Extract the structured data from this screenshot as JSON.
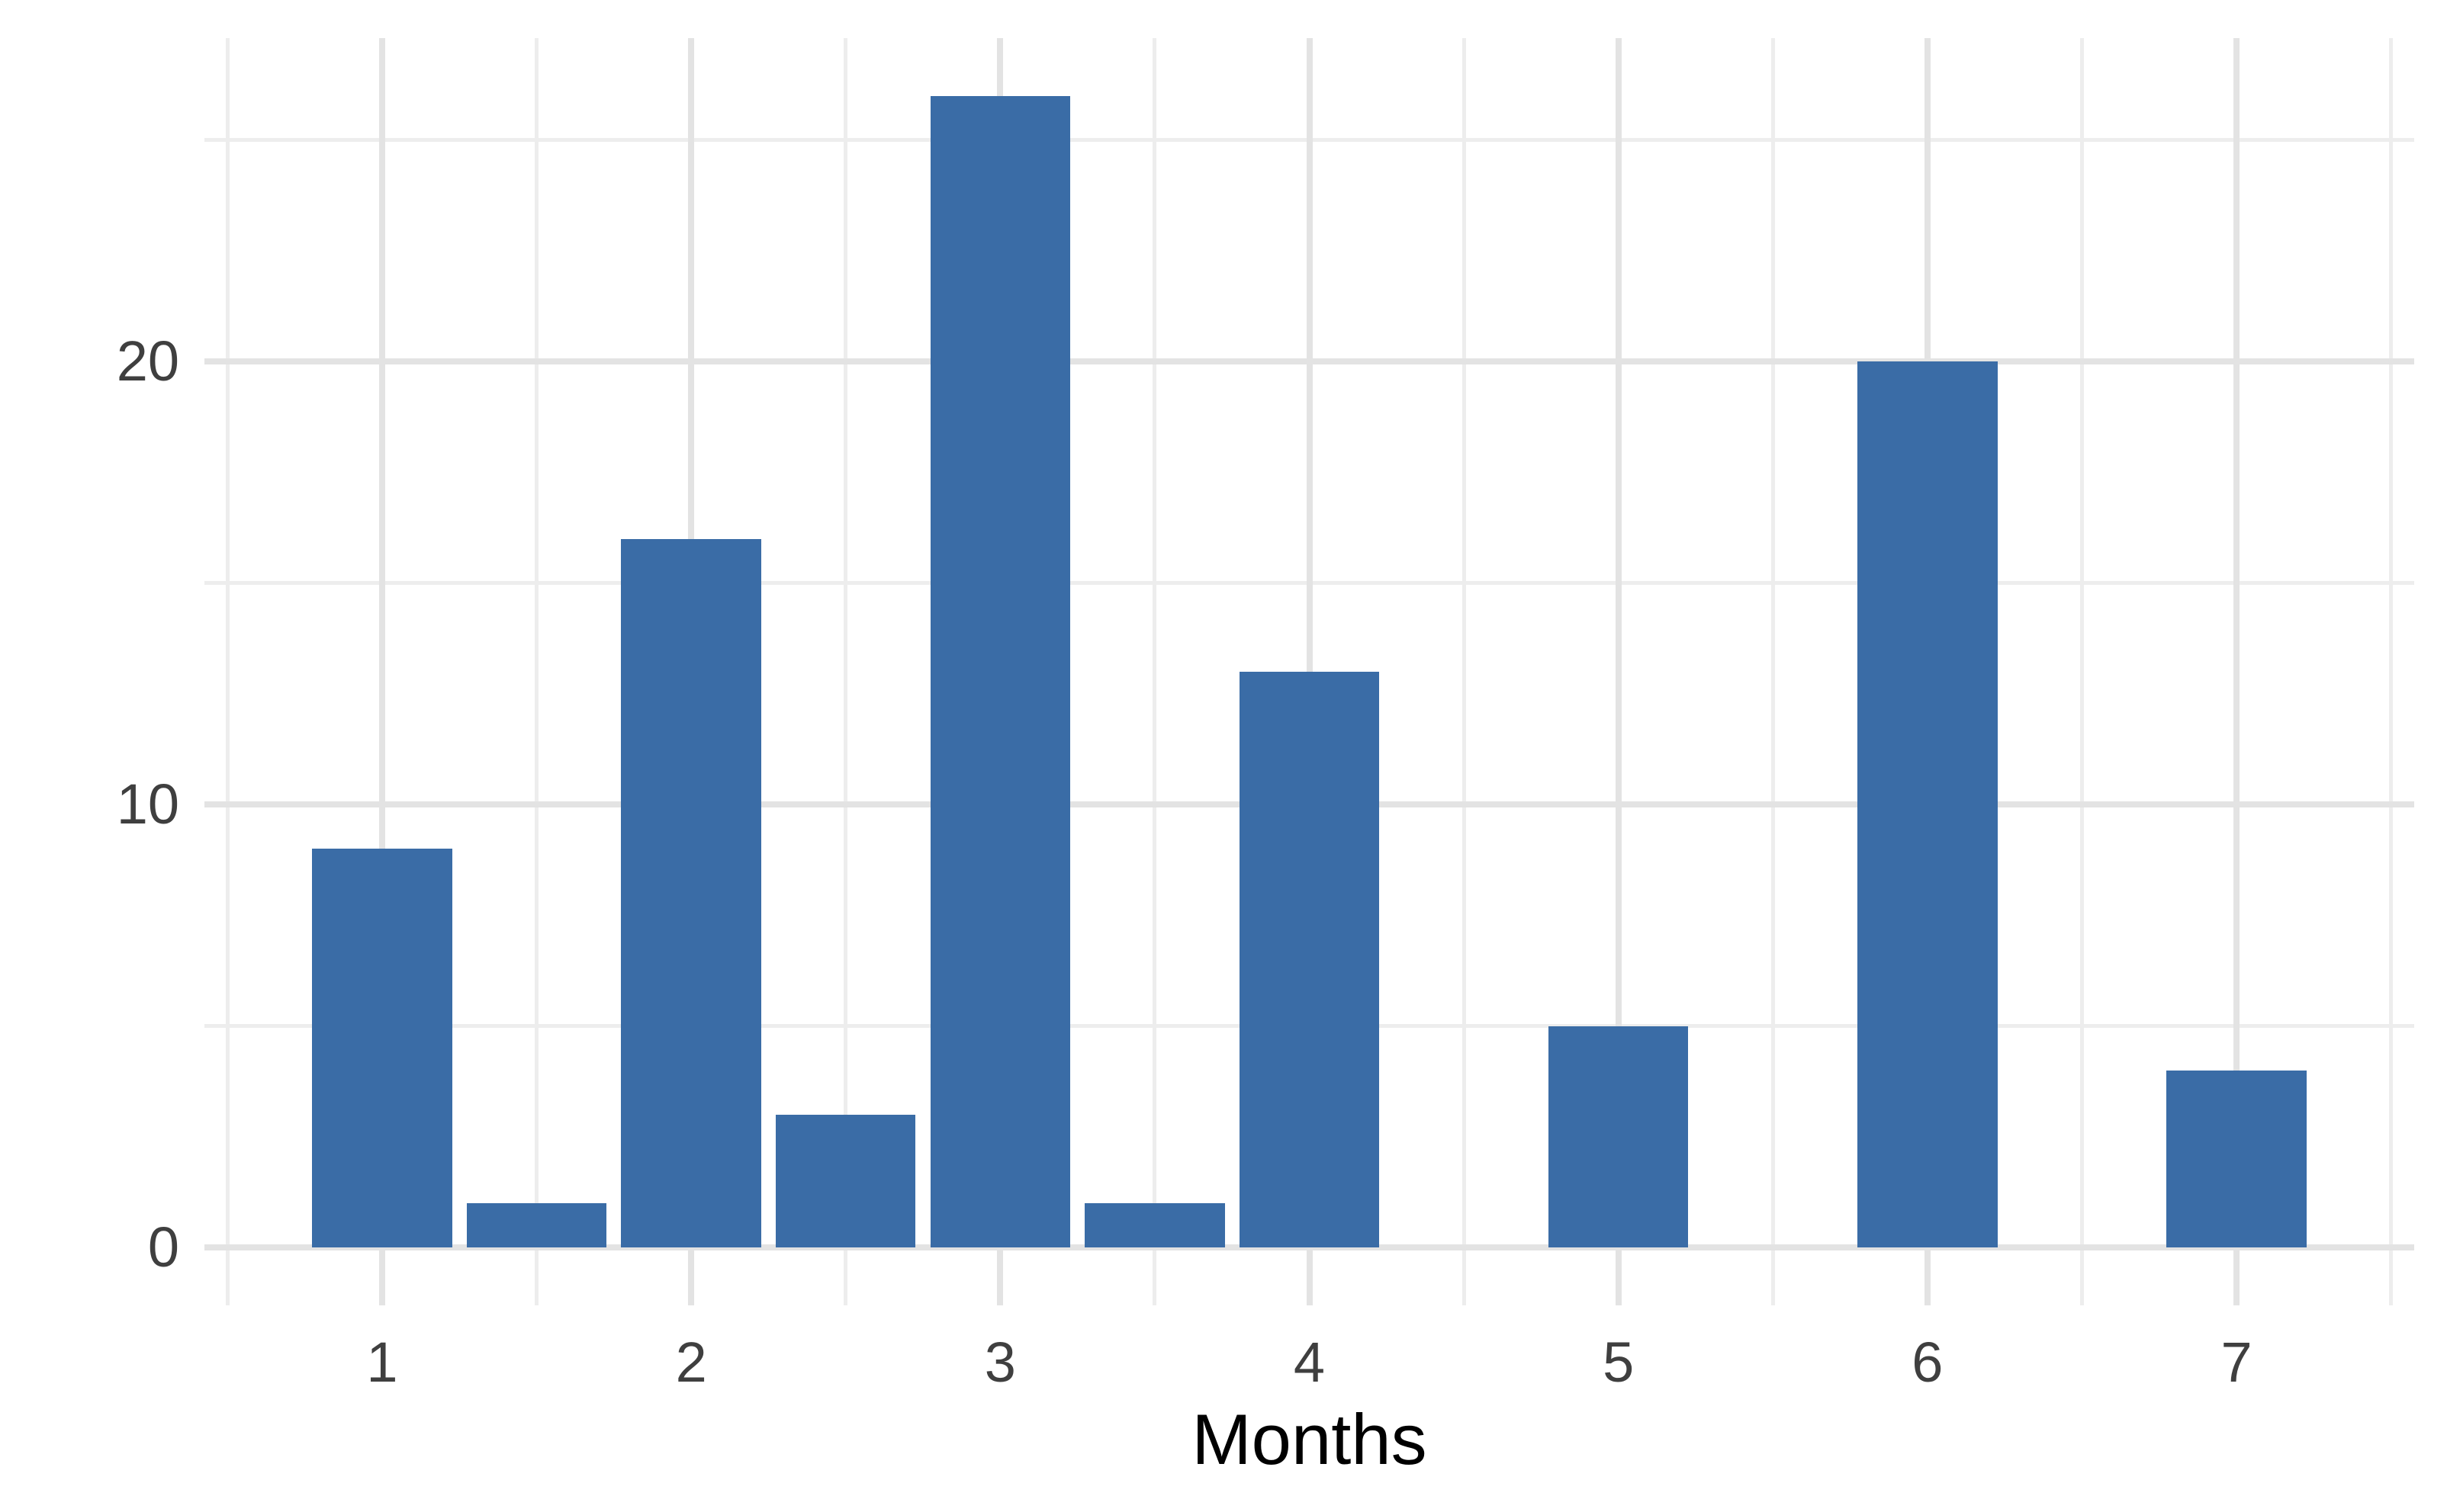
{
  "chart_data": {
    "type": "bar",
    "title": "",
    "xlabel": "Months",
    "ylabel": "",
    "x": [
      1,
      1.5,
      2,
      2.5,
      3,
      3.5,
      4,
      4.5,
      5,
      5.5,
      6,
      6.5,
      7
    ],
    "values": [
      9,
      1,
      16,
      3,
      26,
      1,
      13,
      0,
      5,
      0,
      20,
      0,
      4
    ],
    "bar_width_units": 0.453,
    "xlim": [
      0.425,
      7.575
    ],
    "ylim": [
      -1.3,
      27.3
    ],
    "x_major_ticks": [
      1,
      2,
      3,
      4,
      5,
      6,
      7
    ],
    "x_tick_labels": [
      "1",
      "2",
      "3",
      "4",
      "5",
      "6",
      "7"
    ],
    "x_minor_ticks": [
      0.5,
      1.5,
      2.5,
      3.5,
      4.5,
      5.5,
      6.5,
      7.5
    ],
    "y_major_ticks": [
      0,
      10,
      20
    ],
    "y_tick_labels": [
      "0",
      "10",
      "20"
    ],
    "y_minor_ticks": [
      5,
      15,
      25
    ],
    "grid": "major-and-minor",
    "legend": "none",
    "colors": {
      "bar_fill": "#3a6ca6",
      "grid_major": "#e3e3e3",
      "grid_minor": "#ededed",
      "tick_text": "#3f3f3f",
      "axis_title_text": "#000000",
      "background": "#ffffff"
    }
  }
}
